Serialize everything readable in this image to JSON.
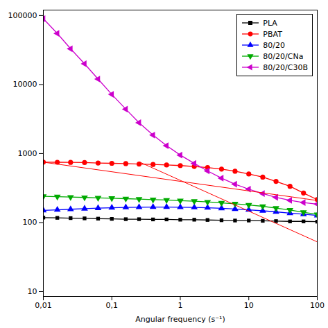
{
  "chart_data": {
    "type": "line",
    "log": true,
    "x_label": "Angular frequency (s⁻¹)",
    "xlim": [
      0.01,
      100
    ],
    "xticks": [
      {
        "value": 0.01,
        "label": "0,01"
      },
      {
        "value": 0.1,
        "label": "0,1"
      },
      1,
      10,
      100
    ],
    "ylim": [
      8.5,
      120000
    ],
    "yticks": [
      10,
      100,
      1000,
      10000,
      100000
    ],
    "legend": "upper right",
    "series": [
      {
        "name": "PLA",
        "color": "#000000",
        "marker": "square",
        "line_style": "solid",
        "x": [
          0.01,
          0.016,
          0.025,
          0.04,
          0.063,
          0.1,
          0.16,
          0.25,
          0.4,
          0.63,
          1.0,
          1.6,
          2.5,
          4.0,
          6.3,
          10,
          16,
          25,
          40,
          63,
          100
        ],
        "values": [
          118,
          117,
          116,
          115,
          114,
          113,
          112,
          112,
          111,
          111,
          110,
          110,
          109,
          108,
          107,
          107,
          106,
          105,
          104,
          104,
          103
        ]
      },
      {
        "name": "PBAT",
        "color": "#ff0000",
        "marker": "circle",
        "line_style": "solid",
        "x": [
          0.01,
          0.016,
          0.025,
          0.04,
          0.063,
          0.1,
          0.16,
          0.25,
          0.4,
          0.63,
          1.0,
          1.6,
          2.5,
          4.0,
          6.3,
          10,
          16,
          25,
          40,
          63,
          100
        ],
        "values": [
          750,
          748,
          745,
          740,
          730,
          722,
          715,
          705,
          695,
          683,
          670,
          650,
          628,
          595,
          555,
          505,
          455,
          395,
          335,
          268,
          215
        ]
      },
      {
        "name": "80/20",
        "color": "#0000ff",
        "marker": "triangle-up",
        "line_style": "solid",
        "x": [
          0.01,
          0.016,
          0.025,
          0.04,
          0.063,
          0.1,
          0.16,
          0.25,
          0.4,
          0.63,
          1.0,
          1.6,
          2.5,
          4.0,
          6.3,
          10,
          16,
          25,
          40,
          63,
          100
        ],
        "values": [
          150,
          153,
          156,
          159,
          162,
          164,
          166,
          167,
          168,
          168,
          167,
          166,
          164,
          161,
          157,
          153,
          148,
          143,
          137,
          132,
          127
        ]
      },
      {
        "name": "80/20/CNa",
        "color": "#00aa00",
        "marker": "triangle-down",
        "line_style": "solid",
        "x": [
          0.01,
          0.016,
          0.025,
          0.04,
          0.063,
          0.1,
          0.16,
          0.25,
          0.4,
          0.63,
          1.0,
          1.6,
          2.5,
          4.0,
          6.3,
          10,
          16,
          25,
          40,
          63,
          100
        ],
        "values": [
          240,
          237,
          234,
          231,
          228,
          225,
          222,
          219,
          215,
          212,
          208,
          204,
          199,
          193,
          187,
          180,
          172,
          162,
          152,
          141,
          131
        ]
      },
      {
        "name": "80/20/C30B",
        "color": "#cc00cc",
        "marker": "triangle-left",
        "line_style": "solid",
        "x": [
          0.01,
          0.016,
          0.025,
          0.04,
          0.063,
          0.1,
          0.16,
          0.25,
          0.4,
          0.63,
          1.0,
          1.6,
          2.5,
          4.0,
          6.3,
          10,
          16,
          25,
          40,
          63,
          100
        ],
        "values": [
          90000,
          55000,
          33000,
          20000,
          12000,
          7200,
          4400,
          2800,
          1850,
          1300,
          950,
          720,
          560,
          440,
          360,
          305,
          263,
          232,
          210,
          195,
          185
        ]
      },
      {
        "color": "#ff0000",
        "line_style": "solid",
        "x": [
          0.01,
          100
        ],
        "values": [
          749.894,
          208.93
        ]
      },
      {
        "color": "#ff0000",
        "line_style": "solid",
        "x": [
          0.25,
          100
        ],
        "values": [
          758.578,
          52.481
        ]
      }
    ]
  }
}
